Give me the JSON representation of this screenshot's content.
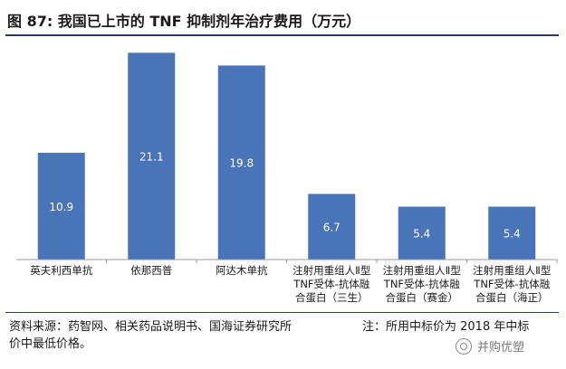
{
  "chart_data": {
    "type": "bar",
    "title": "图 87: 我国已上市的 TNF 抑制剂年治疗费用（万元）",
    "categories": [
      [
        "英夫利西单抗"
      ],
      [
        "依那西普"
      ],
      [
        "阿达木单抗"
      ],
      [
        "注射用重组人Ⅱ型",
        "TNF受体-抗体融",
        "合蛋白（三生）"
      ],
      [
        "注射用重组人Ⅱ型",
        "TNF受体-抗体融",
        "合蛋白（赛金）"
      ],
      [
        "注射用重组人Ⅱ型",
        "TNF受体-抗体融",
        "合蛋白（海正）"
      ]
    ],
    "values": [
      10.9,
      21.1,
      19.8,
      6.7,
      5.4,
      5.4
    ],
    "value_labels": [
      "10.9",
      "21.1",
      "19.8",
      "6.7",
      "5.4",
      "5.4"
    ],
    "ylim": [
      0,
      21.5
    ],
    "xlabel": "",
    "ylabel": "",
    "grid": false,
    "bar_color": "#4a74b8",
    "label_color": "#ffffff"
  },
  "footer": {
    "source": "资料来源：药智网、相关药品说明书、国海证券研究所",
    "note_line1": "注：所用中标价为 2018 年中标",
    "note_line2": "价中最低价格。"
  },
  "watermark": {
    "text": "并购优塑",
    "icon": "wechat-logo-icon"
  }
}
